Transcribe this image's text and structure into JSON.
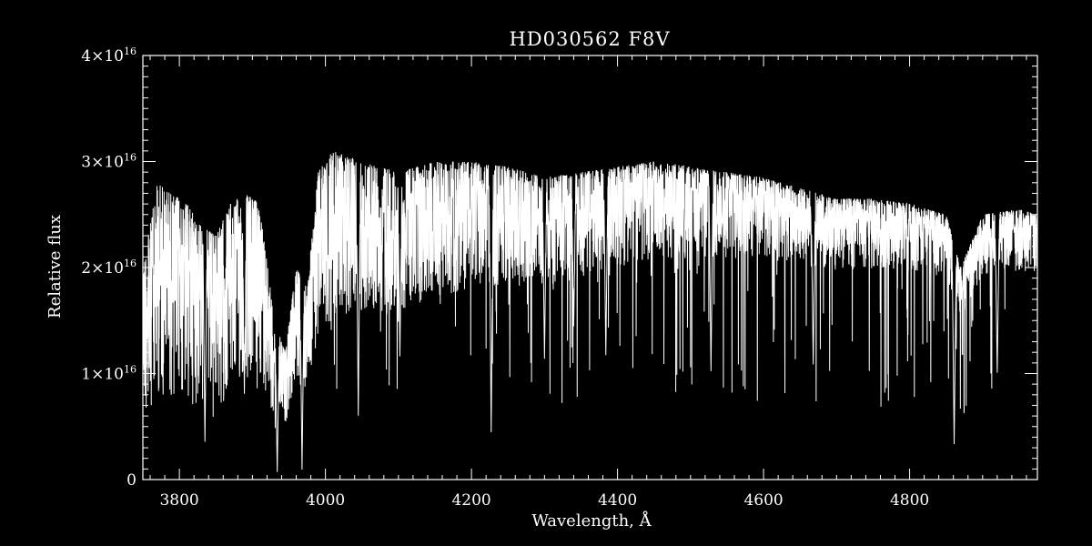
{
  "chart_data": {
    "type": "line",
    "title": "HD030562  F8V",
    "xlabel": "Wavelength, Å",
    "ylabel": "Relative flux",
    "xlim": [
      3750,
      4975
    ],
    "ylim": [
      0,
      4e+16
    ],
    "x_ticks": [
      3800,
      4000,
      4200,
      4400,
      4600,
      4800
    ],
    "y_ticks": [
      {
        "value": 0,
        "mantissa": "0",
        "exponent": ""
      },
      {
        "value": 1e+16,
        "mantissa": "1×10",
        "exponent": "16"
      },
      {
        "value": 2e+16,
        "mantissa": "2×10",
        "exponent": "16"
      },
      {
        "value": 3e+16,
        "mantissa": "3×10",
        "exponent": "16"
      },
      {
        "value": 4e+16,
        "mantissa": "4×10",
        "exponent": "16"
      }
    ],
    "grid": false,
    "colors": {
      "background": "#000000",
      "foreground": "#ffffff"
    },
    "series": [
      {
        "continuum": {
          "x": [
            3750,
            3770,
            3790,
            3810,
            3830,
            3850,
            3870,
            3890,
            3910,
            3930,
            3945,
            3960,
            3975,
            3990,
            4010,
            4050,
            4100,
            4150,
            4200,
            4250,
            4300,
            4350,
            4400,
            4450,
            4500,
            4550,
            4600,
            4650,
            4700,
            4750,
            4800,
            4850,
            4870,
            4900,
            4950,
            4975
          ],
          "y": [
            2e+16,
            2.8e+16,
            2.7e+16,
            2.6e+16,
            2.4e+16,
            2.3e+16,
            2.6e+16,
            2.7e+16,
            2.6e+16,
            1.5e+16,
            1.2e+16,
            2e+16,
            1.8e+16,
            2.9e+16,
            3.1e+16,
            3e+16,
            2.9e+16,
            3e+16,
            3e+16,
            2.95e+16,
            2.85e+16,
            2.9e+16,
            2.95e+16,
            3e+16,
            2.95e+16,
            2.9e+16,
            2.85e+16,
            2.75e+16,
            2.65e+16,
            2.65e+16,
            2.6e+16,
            2.5e+16,
            2e+16,
            2.5e+16,
            2.55e+16,
            2.5e+16
          ]
        },
        "mean_depth": {
          "x": [
            3750,
            3850,
            3950,
            4050,
            4200,
            4400,
            4600,
            4800,
            4975
          ],
          "y": [
            0.45,
            0.45,
            0.35,
            0.3,
            0.25,
            0.2,
            0.17,
            0.15,
            0.14
          ]
        },
        "absorption_lines": [
          {
            "x": 3835,
            "depth": 0.85
          },
          {
            "x": 3889,
            "depth": 0.7
          },
          {
            "x": 3934,
            "depth": 0.95
          },
          {
            "x": 3968,
            "depth": 0.95
          },
          {
            "x": 4045,
            "depth": 0.8
          },
          {
            "x": 4102,
            "depth": 0.6
          },
          {
            "x": 4227,
            "depth": 0.85
          },
          {
            "x": 4300,
            "depth": 0.6
          },
          {
            "x": 4340,
            "depth": 0.5
          },
          {
            "x": 4384,
            "depth": 0.6
          },
          {
            "x": 4528,
            "depth": 0.65
          },
          {
            "x": 4668,
            "depth": 0.6
          },
          {
            "x": 4861,
            "depth": 0.85
          },
          {
            "x": 4920,
            "depth": 0.6
          }
        ],
        "samples_per_angstrom": 4
      }
    ]
  }
}
